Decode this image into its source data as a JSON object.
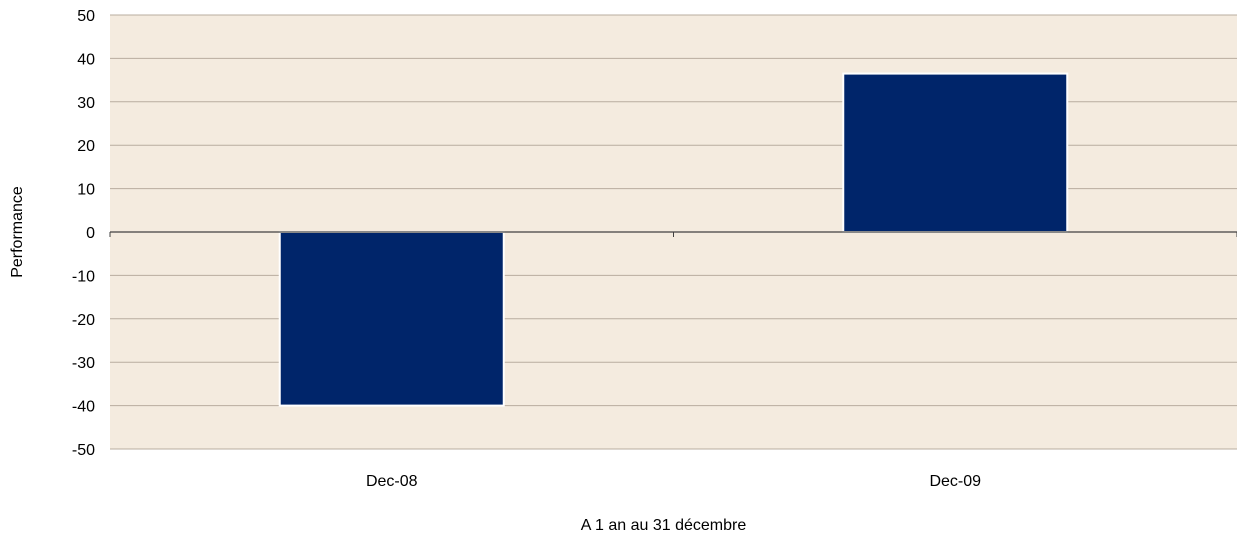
{
  "colors": {
    "plot_background": "#f4ebdf",
    "bar_fill": "#00256a",
    "bar_edge": "#ffffff",
    "gridline": "#b8ad9f",
    "zero_line": "#404040",
    "text": "#000000"
  },
  "chart_data": {
    "type": "bar",
    "categories": [
      "Dec-08",
      "Dec-09"
    ],
    "values": [
      -40,
      36.5
    ],
    "title": "",
    "xlabel": "A 1 an au 31 décembre",
    "ylabel": "Performance",
    "ylim": [
      -50,
      50
    ],
    "yticks": [
      50,
      40,
      30,
      20,
      10,
      0,
      -10,
      -20,
      -30,
      -40,
      -50
    ],
    "grid": true,
    "legend": "none"
  }
}
